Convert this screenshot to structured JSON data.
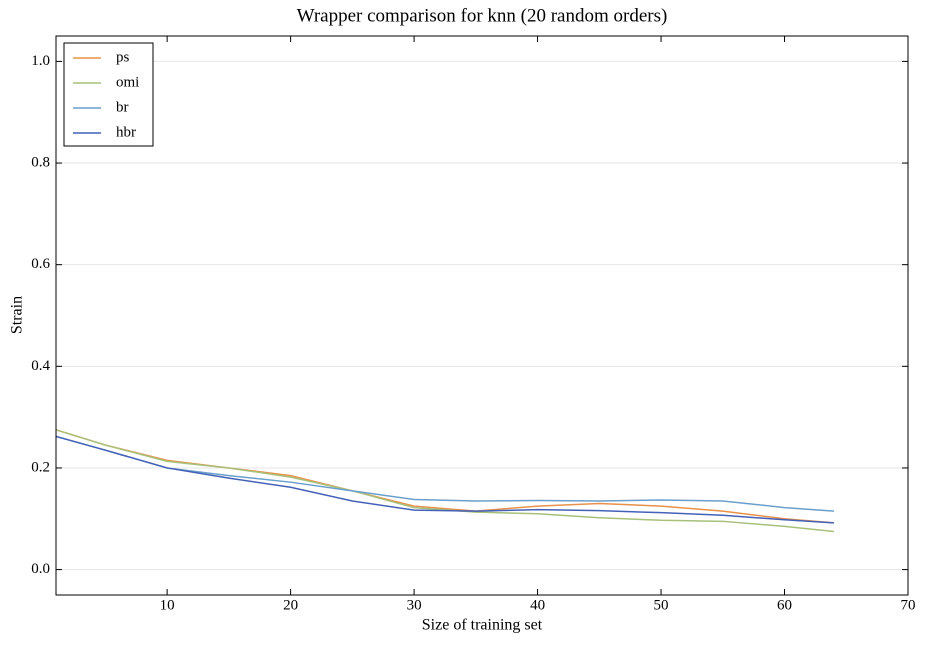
{
  "chart_data": {
    "type": "line",
    "title": "Wrapper comparison for knn (20 random orders)",
    "x_label": "Size of training set",
    "y_label": "Strain",
    "x": [
      1,
      5,
      10,
      15,
      20,
      25,
      30,
      35,
      40,
      45,
      50,
      55,
      60,
      64
    ],
    "series": [
      {
        "name": "ps",
        "color": "#e8914a",
        "values": [
          0.275,
          0.245,
          0.215,
          0.2,
          0.185,
          0.155,
          0.125,
          0.115,
          0.125,
          0.13,
          0.125,
          0.115,
          0.1,
          0.092
        ]
      },
      {
        "name": "omi",
        "color": "#a7c07a",
        "values": [
          0.275,
          0.245,
          0.213,
          0.2,
          0.182,
          0.155,
          0.122,
          0.113,
          0.11,
          0.102,
          0.097,
          0.095,
          0.085,
          0.075
        ]
      },
      {
        "name": "br",
        "color": "#6a9fcc",
        "values": [
          0.262,
          0.235,
          0.2,
          0.185,
          0.172,
          0.155,
          0.138,
          0.135,
          0.136,
          0.135,
          0.137,
          0.135,
          0.122,
          0.115
        ]
      },
      {
        "name": "hbr",
        "color": "#4461b8",
        "values": [
          0.262,
          0.235,
          0.2,
          0.18,
          0.162,
          0.135,
          0.117,
          0.115,
          0.118,
          0.116,
          0.112,
          0.107,
          0.098,
          0.092
        ]
      }
    ],
    "xlim": [
      1,
      70
    ],
    "xticks": [
      10,
      20,
      30,
      40,
      50,
      60,
      70
    ],
    "ylim": [
      -0.05,
      1.05
    ],
    "yticks": [
      {
        "value": 0,
        "label": "0.0"
      },
      {
        "value": 0.2,
        "label": "0.2"
      },
      {
        "value": 0.4,
        "label": "0.4"
      },
      {
        "value": 0.6,
        "label": "0.6"
      },
      {
        "value": 0.8,
        "label": "0.8"
      },
      {
        "value": 1,
        "label": "1.0"
      }
    ],
    "grid": true,
    "legend": "upper left"
  }
}
